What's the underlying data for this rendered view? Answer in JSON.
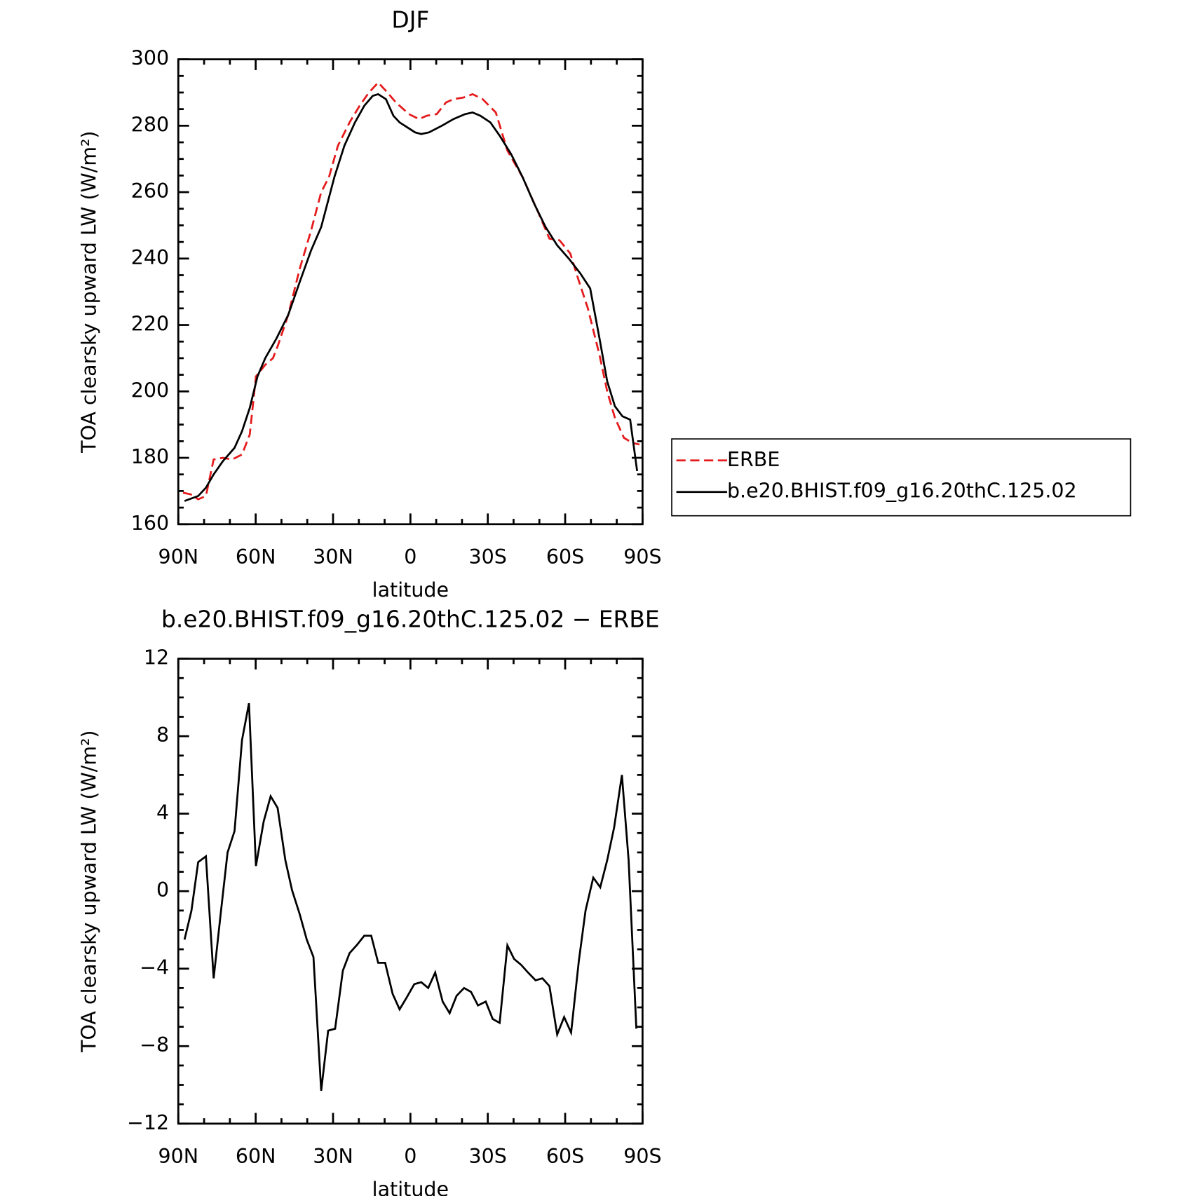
{
  "chart_data": [
    {
      "type": "line",
      "title": "DJF",
      "xlabel": "latitude",
      "ylabel": "TOA clearsky upward LW (W/m²)",
      "xlim": [
        90,
        -90
      ],
      "xticks": [
        {
          "value": 90,
          "label": "90N"
        },
        {
          "value": 60,
          "label": "60N"
        },
        {
          "value": 30,
          "label": "30N"
        },
        0,
        {
          "value": -30,
          "label": "30S"
        },
        {
          "value": -60,
          "label": "60S"
        },
        {
          "value": -90,
          "label": "90S"
        }
      ],
      "ylim": [
        160,
        300
      ],
      "yticks": [
        160,
        180,
        200,
        220,
        240,
        260,
        280,
        300
      ],
      "legend": "right",
      "series": [
        {
          "name": "ERBE",
          "color": "#e41a1c",
          "dash": true,
          "x": [
            88.2,
            85.2,
            82.3,
            79.3,
            76.3,
            72.7,
            69.1,
            65.3,
            62.3,
            59.9,
            56.3,
            53.3,
            51.3,
            47.4,
            42.9,
            38.5,
            34.6,
            31.6,
            28.1,
            23.6,
            19.7,
            16.1,
            12.5,
            9.5,
            5.6,
            0.6,
            -3.3,
            -6.3,
            -10.2,
            -13.8,
            -16.7,
            -20.6,
            -24.1,
            -28,
            -33.1,
            -37.6,
            -43.5,
            -49.5,
            -53.9,
            -57.8,
            -62,
            -65,
            -68.8,
            -73.3,
            -76.3,
            -79.3,
            -82.8,
            -86.1,
            -88.8
          ],
          "values": [
            169.5,
            169,
            167.5,
            168.5,
            179.5,
            180,
            179.5,
            181,
            187,
            204.5,
            208,
            210,
            214,
            223,
            237,
            248.5,
            260,
            264.5,
            274,
            281,
            286,
            290,
            293,
            290.5,
            287,
            283.5,
            282,
            283,
            283.5,
            287,
            288,
            288.5,
            289.5,
            288,
            284,
            272.5,
            264.5,
            254,
            246,
            245.5,
            241.5,
            234,
            225,
            211,
            200,
            192,
            186,
            184.5,
            184
          ]
        },
        {
          "name": "b.e20.BHIST.f09_g16.20thC.125.02",
          "color": "#000000",
          "dash": false,
          "x": [
            87.6,
            82.3,
            79.3,
            76.3,
            72.7,
            68.2,
            65.3,
            62.3,
            59.3,
            56.3,
            51.9,
            47.4,
            42.9,
            38.5,
            34.6,
            29.5,
            25.6,
            21.5,
            17.9,
            14.6,
            12.5,
            9.5,
            6.6,
            4.2,
            1.2,
            -1.8,
            -4.2,
            -7.2,
            -12.2,
            -16.7,
            -21.2,
            -24.1,
            -27.1,
            -31,
            -34.6,
            -39,
            -43.5,
            -48,
            -52.4,
            -56.9,
            -61.4,
            -65.9,
            -69.7,
            -73.3,
            -76.3,
            -79.3,
            -82.2,
            -85.2,
            -87.9
          ],
          "values": [
            167,
            168.5,
            171,
            175,
            179,
            183,
            188,
            195,
            204.5,
            210,
            216,
            223,
            233,
            242.5,
            249.5,
            264.5,
            274,
            281,
            286,
            289,
            289.5,
            288,
            283,
            281,
            279.5,
            278,
            277.5,
            278,
            280,
            282,
            283.5,
            284,
            283,
            281,
            277,
            271.5,
            264.5,
            256.5,
            249.5,
            244,
            240,
            235.5,
            231,
            216,
            203,
            195.5,
            192.5,
            191.5,
            176
          ]
        }
      ]
    },
    {
      "type": "line",
      "title": "b.e20.BHIST.f09_g16.20thC.125.02 − ERBE",
      "xlabel": "latitude",
      "ylabel": "TOA clearsky upward LW (W/m²)",
      "xlim": [
        90,
        -90
      ],
      "xticks": [
        {
          "value": 90,
          "label": "90N"
        },
        {
          "value": 60,
          "label": "60N"
        },
        {
          "value": 30,
          "label": "30N"
        },
        0,
        {
          "value": -30,
          "label": "30S"
        },
        {
          "value": -60,
          "label": "60S"
        },
        {
          "value": -90,
          "label": "90S"
        }
      ],
      "ylim": [
        -12,
        12
      ],
      "yticks": [
        {
          "value": -12,
          "label": "−12"
        },
        {
          "value": -8,
          "label": "−8"
        },
        {
          "value": -4,
          "label": "−4"
        },
        0,
        4,
        8,
        12
      ],
      "series": [
        {
          "color": "#000000",
          "dash": false,
          "x": [
            87.6,
            84.9,
            82.3,
            79.3,
            76.3,
            73.6,
            70.9,
            68.2,
            65.3,
            62.6,
            59.9,
            56.9,
            54.2,
            51.5,
            48.5,
            45.9,
            42.9,
            40.2,
            37.6,
            34.6,
            31.9,
            29.2,
            26.2,
            23.6,
            20.9,
            17.9,
            15.2,
            12.5,
            9.8,
            6.9,
            4.2,
            1.5,
            -1.5,
            -4.2,
            -6.9,
            -9.6,
            -12.5,
            -15.2,
            -17.9,
            -20.8,
            -23.5,
            -26.2,
            -29.2,
            -31.9,
            -34.6,
            -37.6,
            -40.2,
            -42.9,
            -45.6,
            -48.5,
            -51.2,
            -53.9,
            -56.9,
            -59.6,
            -62.3,
            -65.3,
            -67.9,
            -70.9,
            -73.6,
            -76.3,
            -79,
            -82,
            -84.6,
            -87.6
          ],
          "values": [
            -2.5,
            -1,
            1.5,
            1.8,
            -4.5,
            -1.2,
            2,
            3.1,
            7.8,
            9.7,
            1.3,
            3.6,
            4.9,
            4.3,
            1.6,
            0.05,
            -1.2,
            -2.5,
            -3.4,
            -10.3,
            -7.2,
            -7.1,
            -4.1,
            -3.2,
            -2.8,
            -2.3,
            -2.3,
            -3.7,
            -3.7,
            -5.3,
            -6.1,
            -5.5,
            -4.8,
            -4.7,
            -5,
            -4.2,
            -5.7,
            -6.3,
            -5.4,
            -5,
            -5.2,
            -5.9,
            -5.7,
            -6.6,
            -6.8,
            -2.8,
            -3.5,
            -3.8,
            -4.2,
            -4.6,
            -4.5,
            -4.9,
            -7.4,
            -6.5,
            -7.3,
            -3.6,
            -1,
            0.7,
            0.2,
            1.6,
            3.3,
            6,
            1.6,
            -7.1
          ]
        }
      ]
    }
  ]
}
